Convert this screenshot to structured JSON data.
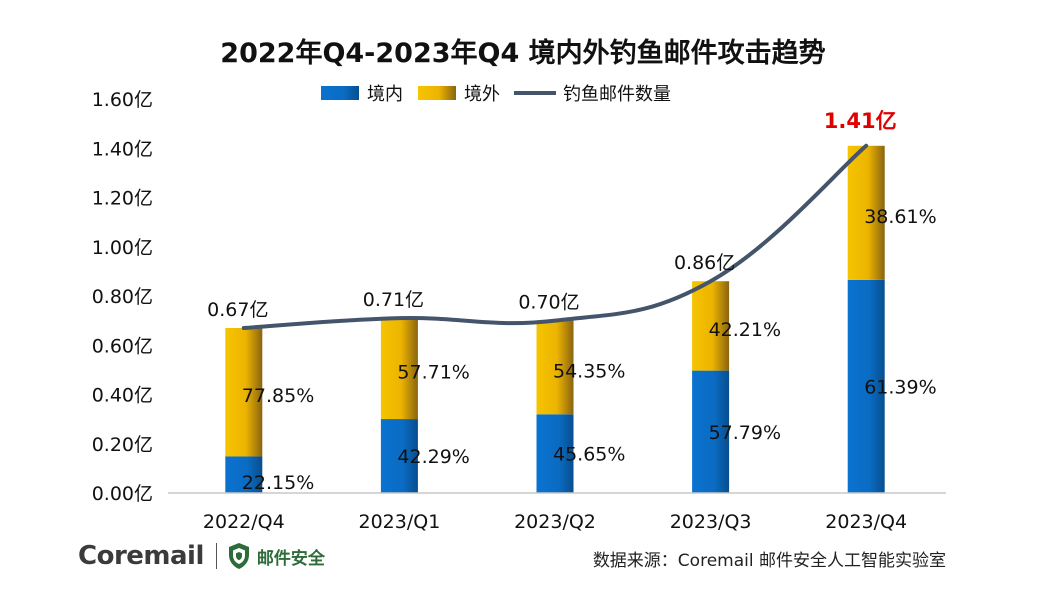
{
  "chart_data": {
    "type": "bar",
    "stacked": true,
    "title": "2022年Q4-2023年Q4 境内外钓鱼邮件攻击趋势",
    "categories": [
      "2022/Q4",
      "2023/Q1",
      "2023/Q2",
      "2023/Q3",
      "2023/Q4"
    ],
    "y_ticks": [
      "0.00亿",
      "0.20亿",
      "0.40亿",
      "0.60亿",
      "0.80亿",
      "1.00亿",
      "1.20亿",
      "1.40亿",
      "1.60亿"
    ],
    "ylim": [
      0,
      1.6
    ],
    "series": [
      {
        "name": "境内",
        "color": "#0a6fc9",
        "values": [
          0.1484,
          0.3003,
          0.3196,
          0.497,
          0.8656
        ],
        "labels": [
          "22.15%",
          "42.29%",
          "45.65%",
          "57.79%",
          "61.39%"
        ]
      },
      {
        "name": "境外",
        "color": "#f2b800",
        "values": [
          0.5216,
          0.4097,
          0.3805,
          0.363,
          0.5444
        ],
        "labels": [
          "77.85%",
          "57.71%",
          "54.35%",
          "42.21%",
          "38.61%"
        ]
      },
      {
        "name": "钓鱼邮件数量",
        "type": "line",
        "color": "#44546a",
        "values": [
          0.67,
          0.71,
          0.7,
          0.86,
          1.41
        ],
        "labels": [
          "0.67亿",
          "0.71亿",
          "0.70亿",
          "0.86亿",
          "1.41亿"
        ],
        "highlight_color": "#e00000"
      }
    ],
    "legend_position": "top",
    "grid": false
  },
  "footer": {
    "brand": "Coremail",
    "brand_sub": "邮件安全",
    "source": "数据来源：Coremail 邮件安全人工智能实验室"
  }
}
